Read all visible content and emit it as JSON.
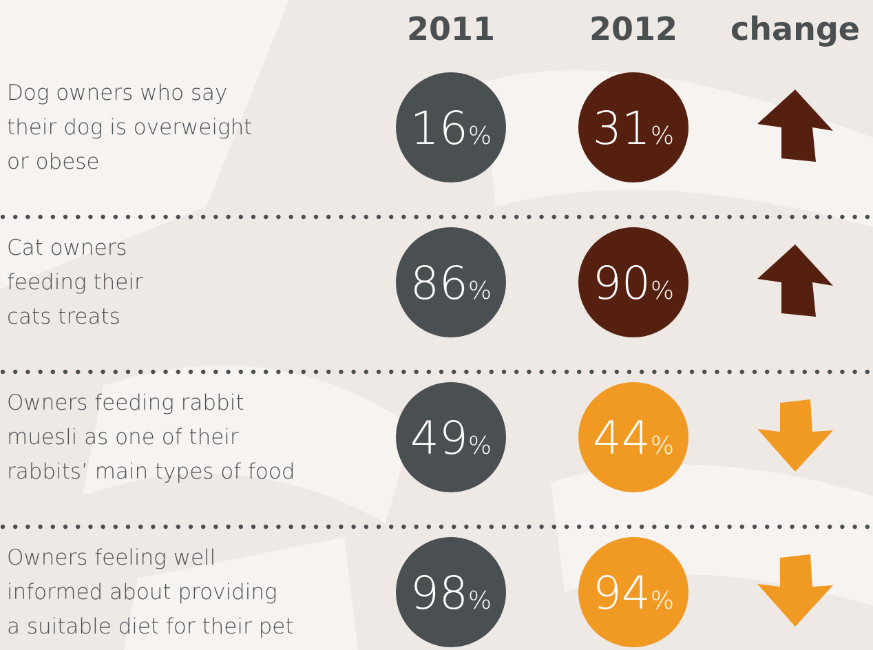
{
  "header": {
    "columns": [
      "2011",
      "2012",
      "change"
    ]
  },
  "unit": "%",
  "rows": [
    {
      "label": [
        "Dog owners who say",
        "their dog is overweight",
        "or obese"
      ],
      "v2011": "16",
      "v2012": "31",
      "color2012": "#55200f",
      "change": "up"
    },
    {
      "label": [
        "Cat owners",
        "feeding their",
        "cats treats"
      ],
      "v2011": "86",
      "v2012": "90",
      "color2012": "#55200f",
      "change": "up"
    },
    {
      "label": [
        "Owners feeding rabbit",
        "muesli as one of their",
        "rabbits’ main types of food"
      ],
      "v2011": "49",
      "v2012": "44",
      "color2012": "#f09a23",
      "change": "down"
    },
    {
      "label": [
        "Owners feeling well",
        "informed about providing",
        "a suitable diet for their pet"
      ],
      "v2011": "98",
      "v2012": "94",
      "color2012": "#f09a23",
      "change": "down"
    }
  ],
  "color2011": "#4a4f52"
}
